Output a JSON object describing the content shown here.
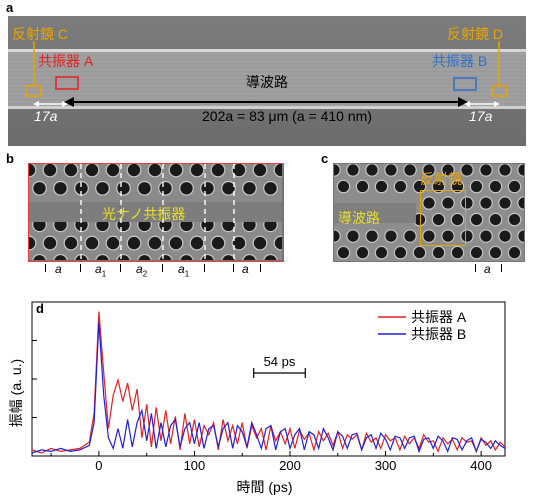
{
  "panel_a": {
    "label": "a",
    "mirror_c": "反射鏡 C",
    "mirror_d": "反射鏡 D",
    "resonator_a": "共振器 A",
    "resonator_b": "共振器 B",
    "waveguide": "導波路",
    "distance_left": "17a",
    "distance_right": "17a",
    "distance_main": "202a = 83 μm (a = 410 nm)",
    "colors": {
      "mirror": "#e8a400",
      "resA": "#e62020",
      "resB": "#2f6fc8",
      "arrow": "#ffffff"
    }
  },
  "panel_b": {
    "label": "b",
    "caption": "光ナノ共振器",
    "scale_labels": [
      {
        "base": "a",
        "sub": ""
      },
      {
        "base": "a",
        "sub": "1"
      },
      {
        "base": "a",
        "sub": "2"
      },
      {
        "base": "a",
        "sub": "1"
      },
      {
        "base": "a",
        "sub": ""
      }
    ]
  },
  "panel_c": {
    "label": "c",
    "mirror": "反射鏡",
    "waveguide": "導波路",
    "scale_label": "a"
  },
  "panel_d": {
    "label": "d",
    "annotation": "54 ps",
    "legend": [
      "共振器 A",
      "共振器 B"
    ],
    "xlabel": "時間 (ps)",
    "ylabel": "振幅 (a. u.)"
  },
  "chart_data": {
    "type": "line",
    "xlabel": "時間 (ps)",
    "ylabel": "振幅 (a. u.)",
    "xlim": [
      -70,
      425
    ],
    "xticks": [
      0,
      100,
      200,
      300,
      400
    ],
    "grid": false,
    "legend_position": "top-right",
    "series": [
      {
        "name": "共振器 A",
        "color": "#e62020",
        "x": [
          -70,
          -60,
          -50,
          -40,
          -30,
          -20,
          -10,
          -5,
          0,
          5,
          10,
          15,
          20,
          25,
          30,
          35,
          40,
          45,
          50,
          55,
          60,
          65,
          70,
          75,
          80,
          85,
          90,
          95,
          100,
          105,
          110,
          115,
          120,
          125,
          130,
          135,
          140,
          145,
          150,
          155,
          160,
          165,
          170,
          175,
          180,
          185,
          190,
          195,
          200,
          205,
          210,
          215,
          220,
          225,
          230,
          235,
          240,
          245,
          250,
          255,
          260,
          265,
          270,
          275,
          280,
          285,
          290,
          295,
          300,
          305,
          310,
          315,
          320,
          325,
          330,
          335,
          340,
          345,
          350,
          355,
          360,
          365,
          370,
          375,
          380,
          385,
          390,
          395,
          400,
          405,
          410,
          415,
          420,
          425
        ],
        "y": [
          0.04,
          0.02,
          0.05,
          0.03,
          0.04,
          0.05,
          0.09,
          0.28,
          0.95,
          0.55,
          0.18,
          0.4,
          0.5,
          0.36,
          0.48,
          0.3,
          0.44,
          0.12,
          0.34,
          0.06,
          0.32,
          0.1,
          0.3,
          0.08,
          0.26,
          0.04,
          0.28,
          0.08,
          0.24,
          0.06,
          0.2,
          0.14,
          0.22,
          0.04,
          0.24,
          0.1,
          0.2,
          0.08,
          0.22,
          0.05,
          0.2,
          0.12,
          0.18,
          0.04,
          0.2,
          0.1,
          0.16,
          0.08,
          0.18,
          0.05,
          0.17,
          0.11,
          0.15,
          0.04,
          0.16,
          0.1,
          0.15,
          0.07,
          0.16,
          0.05,
          0.14,
          0.11,
          0.14,
          0.04,
          0.15,
          0.09,
          0.12,
          0.05,
          0.14,
          0.1,
          0.12,
          0.04,
          0.13,
          0.08,
          0.12,
          0.05,
          0.14,
          0.09,
          0.1,
          0.03,
          0.12,
          0.08,
          0.11,
          0.04,
          0.12,
          0.09,
          0.1,
          0.03,
          0.12,
          0.07,
          0.1,
          0.04,
          0.09,
          0.06
        ]
      },
      {
        "name": "共振器 B",
        "color": "#2020dd",
        "x": [
          -70,
          -60,
          -50,
          -40,
          -30,
          -20,
          -10,
          -5,
          0,
          5,
          10,
          15,
          20,
          25,
          30,
          35,
          40,
          45,
          50,
          55,
          60,
          65,
          70,
          75,
          80,
          85,
          90,
          95,
          100,
          105,
          110,
          115,
          120,
          125,
          130,
          135,
          140,
          145,
          150,
          155,
          160,
          165,
          170,
          175,
          180,
          185,
          190,
          195,
          200,
          205,
          210,
          215,
          220,
          225,
          230,
          235,
          240,
          245,
          250,
          255,
          260,
          265,
          270,
          275,
          280,
          285,
          290,
          295,
          300,
          305,
          310,
          315,
          320,
          325,
          330,
          335,
          340,
          345,
          350,
          355,
          360,
          365,
          370,
          375,
          380,
          385,
          390,
          395,
          400,
          405,
          410,
          415,
          420,
          425
        ],
        "y": [
          0.02,
          0.04,
          0.03,
          0.05,
          0.03,
          0.04,
          0.07,
          0.22,
          0.88,
          0.4,
          0.12,
          0.05,
          0.18,
          0.05,
          0.24,
          0.06,
          0.22,
          0.3,
          0.1,
          0.28,
          0.05,
          0.22,
          0.06,
          0.2,
          0.24,
          0.06,
          0.18,
          0.22,
          0.08,
          0.22,
          0.05,
          0.18,
          0.2,
          0.06,
          0.18,
          0.22,
          0.05,
          0.2,
          0.16,
          0.06,
          0.22,
          0.14,
          0.05,
          0.18,
          0.2,
          0.04,
          0.16,
          0.18,
          0.05,
          0.14,
          0.18,
          0.04,
          0.16,
          0.14,
          0.05,
          0.18,
          0.12,
          0.04,
          0.16,
          0.13,
          0.05,
          0.14,
          0.15,
          0.04,
          0.12,
          0.14,
          0.05,
          0.15,
          0.11,
          0.04,
          0.13,
          0.12,
          0.05,
          0.12,
          0.13,
          0.03,
          0.11,
          0.12,
          0.05,
          0.13,
          0.1,
          0.03,
          0.12,
          0.11,
          0.04,
          0.1,
          0.12,
          0.03,
          0.11,
          0.09,
          0.05,
          0.1,
          0.07,
          0.05
        ]
      }
    ]
  }
}
